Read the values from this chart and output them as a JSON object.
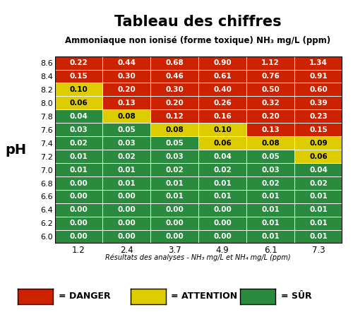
{
  "title": "Tableau des chiffres",
  "subtitle": "Ammoniaque non ionisé (forme toxique) NH₃ mg/L (ppm)",
  "ph_labels": [
    "8.6",
    "8.4",
    "8.2",
    "8.0",
    "7.8",
    "7.6",
    "7.4",
    "7.2",
    "7.0",
    "6.8",
    "6.6",
    "6.4",
    "6.2",
    "6.0"
  ],
  "nh4_labels": [
    "1.2",
    "2.4",
    "3.7",
    "4.9",
    "6.1",
    "7.3"
  ],
  "xlabel": "Résultats des analyses - NH₃ mg/L et NH₄ mg/L (ppm)",
  "values": [
    [
      "0.22",
      "0.44",
      "0.68",
      "0.90",
      "1.12",
      "1.34"
    ],
    [
      "0.15",
      "0.30",
      "0.46",
      "0.61",
      "0.76",
      "0.91"
    ],
    [
      "0.10",
      "0.20",
      "0.30",
      "0.40",
      "0.50",
      "0.60"
    ],
    [
      "0.06",
      "0.13",
      "0.20",
      "0.26",
      "0.32",
      "0.39"
    ],
    [
      "0.04",
      "0.08",
      "0.12",
      "0.16",
      "0.20",
      "0.23"
    ],
    [
      "0.03",
      "0.05",
      "0.08",
      "0.10",
      "0.13",
      "0.15"
    ],
    [
      "0.02",
      "0.03",
      "0.05",
      "0.06",
      "0.08",
      "0.09"
    ],
    [
      "0.01",
      "0.02",
      "0.03",
      "0.04",
      "0.05",
      "0.06"
    ],
    [
      "0.01",
      "0.01",
      "0.02",
      "0.02",
      "0.03",
      "0.04"
    ],
    [
      "0.00",
      "0.01",
      "0.01",
      "0.01",
      "0.02",
      "0.02"
    ],
    [
      "0.00",
      "0.00",
      "0.01",
      "0.01",
      "0.01",
      "0.01"
    ],
    [
      "0.00",
      "0.00",
      "0.00",
      "0.00",
      "0.01",
      "0.01"
    ],
    [
      "0.00",
      "0.00",
      "0.00",
      "0.00",
      "0.01",
      "0.01"
    ],
    [
      "0.00",
      "0.00",
      "0.00",
      "0.00",
      "0.01",
      "0.01"
    ]
  ],
  "colors": [
    [
      "#cc2200",
      "#cc2200",
      "#cc2200",
      "#cc2200",
      "#cc2200",
      "#cc2200"
    ],
    [
      "#cc2200",
      "#cc2200",
      "#cc2200",
      "#cc2200",
      "#cc2200",
      "#cc2200"
    ],
    [
      "#ddcc00",
      "#cc2200",
      "#cc2200",
      "#cc2200",
      "#cc2200",
      "#cc2200"
    ],
    [
      "#ddcc00",
      "#cc2200",
      "#cc2200",
      "#cc2200",
      "#cc2200",
      "#cc2200"
    ],
    [
      "#2a8a3e",
      "#ddcc00",
      "#cc2200",
      "#cc2200",
      "#cc2200",
      "#cc2200"
    ],
    [
      "#2a8a3e",
      "#2a8a3e",
      "#ddcc00",
      "#ddcc00",
      "#cc2200",
      "#cc2200"
    ],
    [
      "#2a8a3e",
      "#2a8a3e",
      "#2a8a3e",
      "#ddcc00",
      "#ddcc00",
      "#ddcc00"
    ],
    [
      "#2a8a3e",
      "#2a8a3e",
      "#2a8a3e",
      "#2a8a3e",
      "#2a8a3e",
      "#ddcc00"
    ],
    [
      "#2a8a3e",
      "#2a8a3e",
      "#2a8a3e",
      "#2a8a3e",
      "#2a8a3e",
      "#2a8a3e"
    ],
    [
      "#2a8a3e",
      "#2a8a3e",
      "#2a8a3e",
      "#2a8a3e",
      "#2a8a3e",
      "#2a8a3e"
    ],
    [
      "#2a8a3e",
      "#2a8a3e",
      "#2a8a3e",
      "#2a8a3e",
      "#2a8a3e",
      "#2a8a3e"
    ],
    [
      "#2a8a3e",
      "#2a8a3e",
      "#2a8a3e",
      "#2a8a3e",
      "#2a8a3e",
      "#2a8a3e"
    ],
    [
      "#2a8a3e",
      "#2a8a3e",
      "#2a8a3e",
      "#2a8a3e",
      "#2a8a3e",
      "#2a8a3e"
    ],
    [
      "#2a8a3e",
      "#2a8a3e",
      "#2a8a3e",
      "#2a8a3e",
      "#2a8a3e",
      "#2a8a3e"
    ]
  ],
  "text_colors": [
    [
      "white",
      "white",
      "white",
      "white",
      "white",
      "white"
    ],
    [
      "white",
      "white",
      "white",
      "white",
      "white",
      "white"
    ],
    [
      "black",
      "white",
      "white",
      "white",
      "white",
      "white"
    ],
    [
      "black",
      "white",
      "white",
      "white",
      "white",
      "white"
    ],
    [
      "white",
      "black",
      "white",
      "white",
      "white",
      "white"
    ],
    [
      "white",
      "white",
      "black",
      "black",
      "white",
      "white"
    ],
    [
      "white",
      "white",
      "white",
      "black",
      "black",
      "black"
    ],
    [
      "white",
      "white",
      "white",
      "white",
      "white",
      "black"
    ],
    [
      "white",
      "white",
      "white",
      "white",
      "white",
      "white"
    ],
    [
      "white",
      "white",
      "white",
      "white",
      "white",
      "white"
    ],
    [
      "white",
      "white",
      "white",
      "white",
      "white",
      "white"
    ],
    [
      "white",
      "white",
      "white",
      "white",
      "white",
      "white"
    ],
    [
      "white",
      "white",
      "white",
      "white",
      "white",
      "white"
    ],
    [
      "white",
      "white",
      "white",
      "white",
      "white",
      "white"
    ]
  ],
  "legend_danger_color": "#cc2200",
  "legend_attention_color": "#ddcc00",
  "legend_sur_color": "#2a8a3e",
  "legend_danger_text": "= DANGER",
  "legend_attention_text": "= ATTENTION",
  "legend_sur_text": "= SÛR",
  "ph_ylabel": "pH",
  "title_fontsize": 15,
  "subtitle_fontsize": 8.5,
  "cell_fontsize": 7.5,
  "ylabel_fontsize": 14,
  "tick_fontsize": 8,
  "xlabel_fontsize": 7,
  "legend_fontsize": 9
}
